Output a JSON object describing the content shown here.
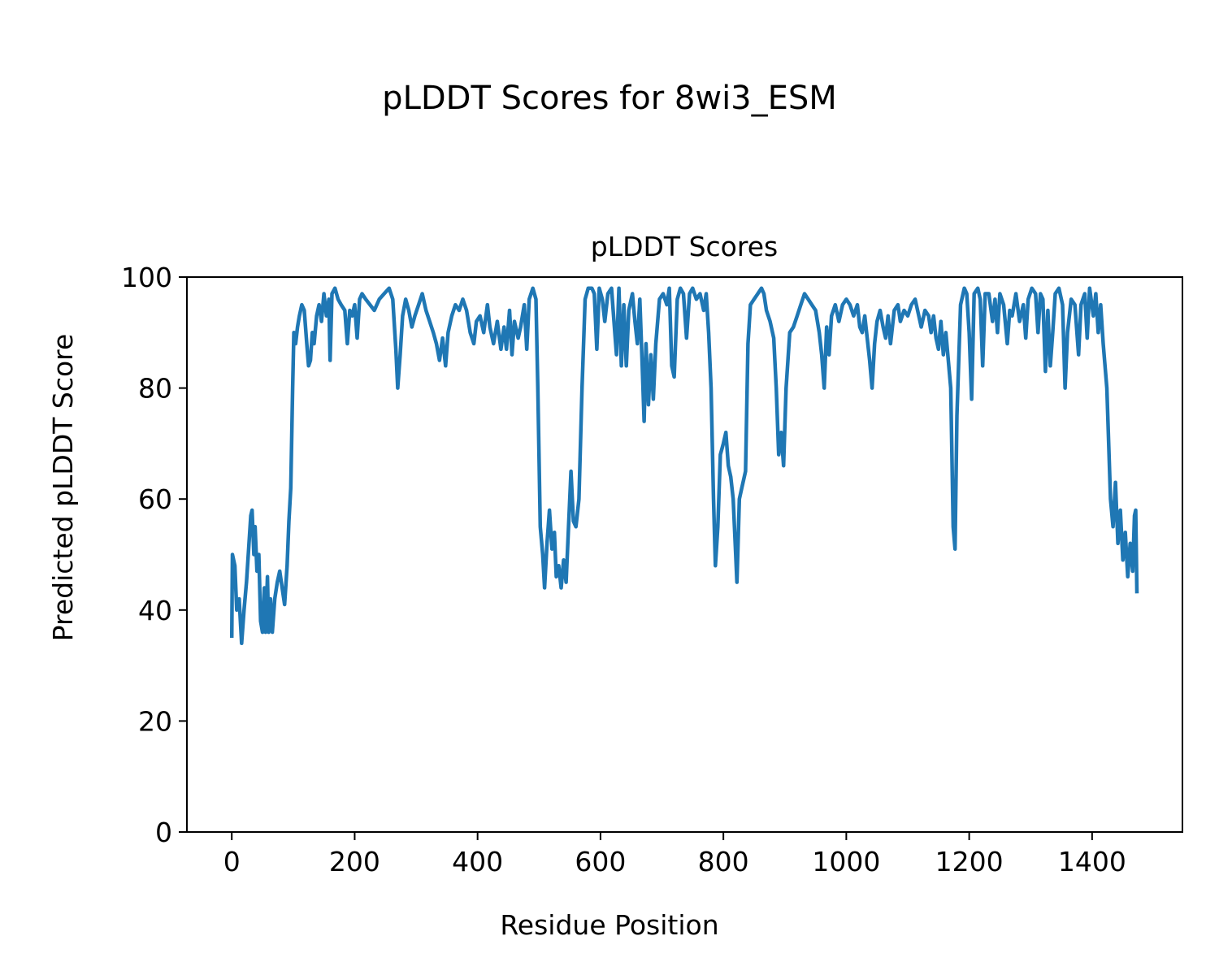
{
  "chart_data": {
    "type": "line",
    "suptitle": "pLDDT Scores for 8wi3_ESM",
    "title": "pLDDT Scores",
    "xlabel": "Residue Position",
    "ylabel": "Predicted pLDDT Score",
    "xlim": [
      -73,
      1547
    ],
    "ylim": [
      0,
      100
    ],
    "xticks": [
      0,
      200,
      400,
      600,
      800,
      1000,
      1200,
      1400
    ],
    "yticks": [
      0,
      20,
      40,
      60,
      80,
      100
    ],
    "grid": false,
    "series": [
      {
        "name": "pLDDT",
        "color": "#1f77b4",
        "x": [
          0,
          1,
          5,
          8,
          12,
          16,
          20,
          24,
          28,
          31,
          33,
          36,
          38,
          41,
          44,
          47,
          50,
          53,
          55,
          58,
          60,
          63,
          66,
          70,
          74,
          78,
          82,
          86,
          90,
          93,
          96,
          99,
          101,
          104,
          107,
          110,
          114,
          118,
          122,
          125,
          128,
          131,
          134,
          138,
          142,
          146,
          150,
          154,
          158,
          160,
          163,
          168,
          173,
          178,
          184,
          188,
          192,
          196,
          200,
          204,
          208,
          212,
          218,
          225,
          232,
          240,
          248,
          256,
          262,
          267,
          270,
          274,
          278,
          283,
          288,
          293,
          298,
          304,
          310,
          316,
          322,
          328,
          333,
          338,
          343,
          348,
          352,
          358,
          364,
          370,
          376,
          382,
          388,
          394,
          398,
          404,
          410,
          416,
          420,
          426,
          432,
          438,
          443,
          447,
          452,
          456,
          460,
          466,
          470,
          476,
          480,
          484,
          490,
          495,
          498,
          502,
          506,
          509,
          513,
          517,
          521,
          525,
          528,
          532,
          536,
          540,
          544,
          548,
          552,
          556,
          560,
          565,
          570,
          575,
          580,
          586,
          590,
          594,
          598,
          603,
          607,
          612,
          618,
          622,
          626,
          630,
          634,
          638,
          642,
          646,
          652,
          656,
          660,
          664,
          668,
          671,
          674,
          678,
          682,
          686,
          690,
          696,
          702,
          708,
          712,
          716,
          720,
          725,
          730,
          735,
          740,
          745,
          750,
          756,
          762,
          768,
          772,
          776,
          780,
          784,
          787,
          791,
          795,
          800,
          804,
          808,
          812,
          816,
          820,
          822,
          826,
          830,
          836,
          840,
          844,
          850,
          856,
          862,
          866,
          870,
          876,
          882,
          886,
          890,
          894,
          898,
          902,
          908,
          914,
          920,
          926,
          932,
          938,
          944,
          950,
          956,
          960,
          964,
          968,
          972,
          976,
          982,
          988,
          994,
          1000,
          1006,
          1012,
          1018,
          1022,
          1026,
          1030,
          1034,
          1038,
          1042,
          1046,
          1050,
          1055,
          1060,
          1064,
          1068,
          1072,
          1078,
          1084,
          1088,
          1094,
          1100,
          1106,
          1112,
          1118,
          1122,
          1128,
          1134,
          1138,
          1142,
          1146,
          1150,
          1154,
          1158,
          1162,
          1166,
          1170,
          1174,
          1177,
          1180,
          1186,
          1192,
          1196,
          1200,
          1204,
          1208,
          1214,
          1218,
          1222,
          1226,
          1232,
          1238,
          1242,
          1246,
          1250,
          1256,
          1262,
          1266,
          1270,
          1276,
          1282,
          1288,
          1292,
          1296,
          1302,
          1308,
          1312,
          1316,
          1320,
          1324,
          1328,
          1332,
          1336,
          1340,
          1346,
          1352,
          1356,
          1360,
          1366,
          1372,
          1378,
          1382,
          1388,
          1392,
          1396,
          1402,
          1406,
          1410,
          1414,
          1418,
          1424,
          1430,
          1434,
          1438,
          1442,
          1446,
          1450,
          1454,
          1458,
          1462,
          1466,
          1469,
          1471,
          1473
        ],
        "y": [
          35,
          50,
          48,
          40,
          42,
          34,
          40,
          45,
          52,
          57,
          58,
          50,
          55,
          47,
          50,
          38,
          36,
          44,
          36,
          46,
          36,
          42,
          36,
          42,
          45,
          47,
          44,
          41,
          48,
          56,
          62,
          80,
          90,
          88,
          91,
          93,
          95,
          94,
          88,
          84,
          85,
          90,
          88,
          93,
          95,
          92,
          97,
          93,
          96,
          85,
          97,
          98,
          96,
          95,
          94,
          88,
          94,
          93,
          95,
          89,
          96,
          97,
          96,
          95,
          94,
          96,
          97,
          98,
          96,
          87,
          80,
          86,
          93,
          96,
          94,
          91,
          93,
          95,
          97,
          94,
          92,
          90,
          88,
          85,
          89,
          84,
          90,
          93,
          95,
          94,
          96,
          94,
          90,
          88,
          92,
          93,
          90,
          95,
          91,
          88,
          92,
          87,
          91,
          87,
          94,
          86,
          92,
          89,
          91,
          95,
          87,
          96,
          98,
          96,
          80,
          55,
          50,
          44,
          52,
          58,
          51,
          54,
          46,
          48,
          44,
          49,
          45,
          55,
          65,
          56,
          55,
          60,
          80,
          96,
          98,
          98,
          97,
          87,
          98,
          96,
          92,
          97,
          98,
          92,
          86,
          98,
          84,
          95,
          84,
          94,
          97,
          92,
          88,
          96,
          84,
          74,
          88,
          77,
          86,
          78,
          88,
          96,
          97,
          95,
          98,
          84,
          82,
          96,
          98,
          97,
          89,
          97,
          98,
          96,
          97,
          94,
          97,
          90,
          80,
          60,
          48,
          55,
          68,
          70,
          72,
          66,
          64,
          60,
          50,
          45,
          60,
          62,
          65,
          88,
          95,
          96,
          97,
          98,
          97,
          94,
          92,
          89,
          80,
          68,
          72,
          66,
          80,
          90,
          91,
          93,
          95,
          97,
          96,
          95,
          94,
          90,
          86,
          80,
          91,
          86,
          93,
          95,
          92,
          95,
          96,
          95,
          93,
          95,
          91,
          90,
          93,
          89,
          85,
          80,
          88,
          92,
          94,
          91,
          89,
          93,
          88,
          94,
          95,
          92,
          94,
          93,
          95,
          96,
          93,
          91,
          94,
          93,
          90,
          93,
          89,
          87,
          92,
          86,
          90,
          85,
          80,
          55,
          51,
          75,
          95,
          98,
          97,
          90,
          78,
          97,
          98,
          96,
          84,
          97,
          97,
          92,
          96,
          90,
          97,
          95,
          88,
          94,
          93,
          97,
          92,
          95,
          89,
          96,
          98,
          97,
          90,
          97,
          96,
          83,
          94,
          84,
          90,
          97,
          98,
          95,
          80,
          90,
          96,
          95,
          86,
          95,
          97,
          89,
          98,
          93,
          97,
          90,
          95,
          88,
          80,
          60,
          55,
          63,
          52,
          58,
          49,
          54,
          46,
          52,
          47,
          57,
          58,
          43
        ]
      }
    ]
  }
}
